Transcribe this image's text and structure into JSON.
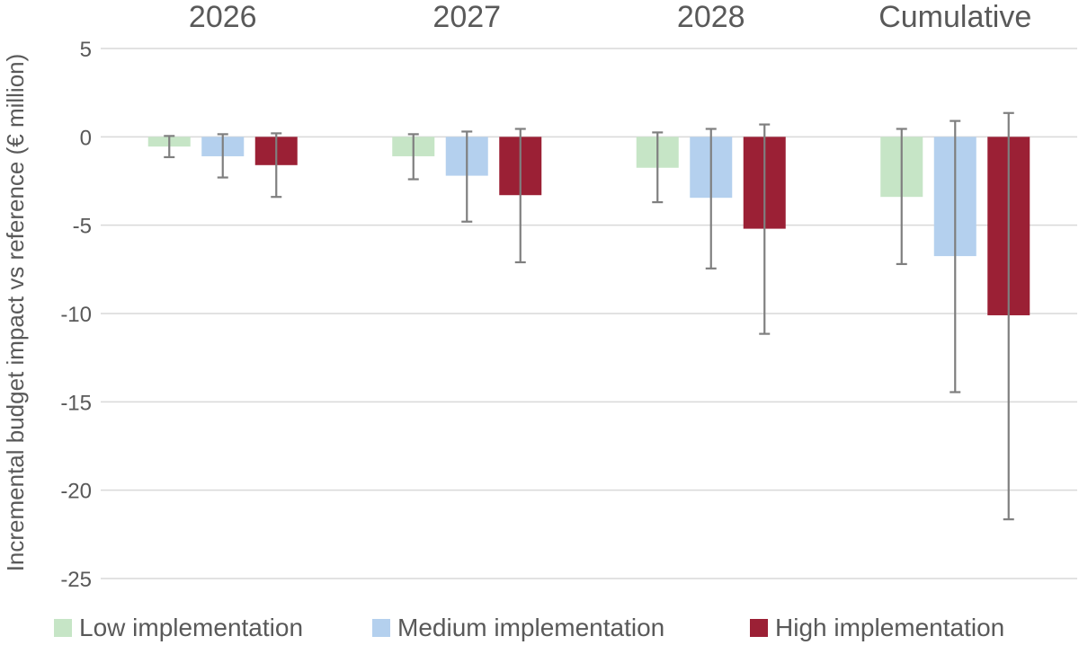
{
  "chart_data": {
    "type": "bar",
    "categories": [
      "2026",
      "2027",
      "2028",
      "Cumulative"
    ],
    "ylabel": "Incremental budget impact vs reference (€ million)",
    "ylim": [
      -25,
      5
    ],
    "yticks": [
      "5",
      "0",
      "-5",
      "-10",
      "-15",
      "-20",
      "-25"
    ],
    "ytick_values": [
      5,
      0,
      -5,
      -10,
      -15,
      -20,
      -25
    ],
    "grid": true,
    "legend_position": "bottom",
    "category_labels_position": "top",
    "series": [
      {
        "name": "Low implementation",
        "color": "#c6e5c6",
        "values": [
          -0.55,
          -1.1,
          -1.75,
          -3.4
        ],
        "error_low": [
          -1.15,
          -2.4,
          -3.7,
          -7.2
        ],
        "error_high": [
          0.05,
          0.15,
          0.25,
          0.45
        ]
      },
      {
        "name": "Medium implementation",
        "color": "#b4d0ee",
        "values": [
          -1.1,
          -2.2,
          -3.45,
          -6.75
        ],
        "error_low": [
          -2.3,
          -4.8,
          -7.45,
          -14.45
        ],
        "error_high": [
          0.15,
          0.3,
          0.45,
          0.9
        ]
      },
      {
        "name": "High implementation",
        "color": "#9b2035",
        "values": [
          -1.6,
          -3.3,
          -5.2,
          -10.1
        ],
        "error_low": [
          -3.4,
          -7.1,
          -11.15,
          -21.65
        ],
        "error_high": [
          0.2,
          0.45,
          0.7,
          1.35
        ]
      }
    ]
  }
}
